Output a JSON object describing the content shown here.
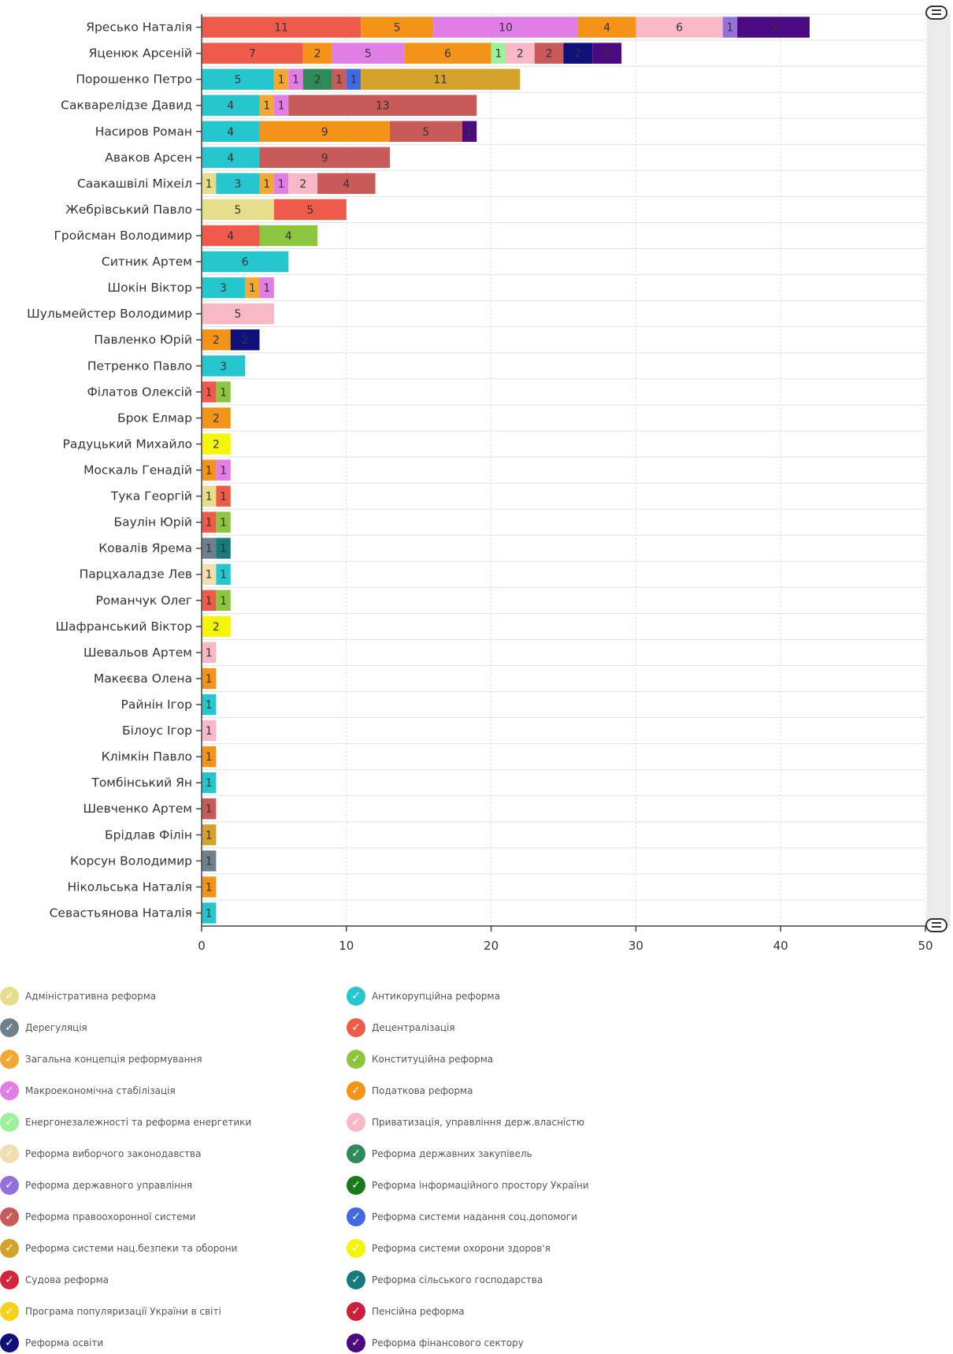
{
  "chart_data": {
    "type": "bar",
    "orientation": "horizontal",
    "stacked": true,
    "xlim": [
      0,
      50
    ],
    "x_ticks": [
      0,
      10,
      20,
      30,
      40,
      50
    ],
    "grid": true,
    "legend_position": "bottom",
    "categories": [
      "Яресько Наталія",
      "Яценюк Арсеній",
      "Порошенко Петро",
      "Сакварелідзе Давид",
      "Насиров Роман",
      "Аваков Арсен",
      "Саакашвілі Міхеіл",
      "Жебрівський Павло",
      "Гройсман Володимир",
      "Ситник Артем",
      "Шокін Віктор",
      "Шульмейстер Володимир",
      "Павленко Юрій",
      "Петренко Павло",
      "Філатов Олексій",
      "Брок Елмар",
      "Радуцький Михайло",
      "Москаль Генадій",
      "Тука Георгій",
      "Баулін Юрій",
      "Ковалів Ярема",
      "Парцхаладзе Лев",
      "Романчук Олег",
      "Шафранський Віктор",
      "Шевальов Артем",
      "Макеєва Олена",
      "Райнін Ігор",
      "Білоус Ігор",
      "Клімкін Павло",
      "Томбінський Ян",
      "Шевченко Артем",
      "Брідлав Філін",
      "Корсун Володимир",
      "Нікольська Наталія",
      "Севастьянова Наталія"
    ],
    "series": [
      {
        "name": "Адміністративна реформа",
        "color": "#e6de8a"
      },
      {
        "name": "Антикорупційна реформа",
        "color": "#26c6cf"
      },
      {
        "name": "Дерегуляція",
        "color": "#6e7f8d"
      },
      {
        "name": "Децентралізація",
        "color": "#ef5b4a"
      },
      {
        "name": "Загальна концепція реформування",
        "color": "#f3a833"
      },
      {
        "name": "Конституційна реформа",
        "color": "#8cc63f"
      },
      {
        "name": "Макроекономічна стабілізація",
        "color": "#e07ee6"
      },
      {
        "name": "Податкова реформа",
        "color": "#f39418"
      },
      {
        "name": "Енергонезалежності та реформа енергетики",
        "color": "#9cf29a"
      },
      {
        "name": "Приватизація, управління держ.власністю",
        "color": "#f9b8c6"
      },
      {
        "name": "Реформа виборчого законодавства",
        "color": "#f2dfb0"
      },
      {
        "name": "Реформа державних закупівель",
        "color": "#2e8b57"
      },
      {
        "name": "Реформа державного управління",
        "color": "#9370db"
      },
      {
        "name": "Реформа інформаційного простору України",
        "color": "#1a7a1a"
      },
      {
        "name": "Реформа правоохоронної системи",
        "color": "#c85a5a"
      },
      {
        "name": "Реформа системи надання соц.допомоги",
        "color": "#4169e1"
      },
      {
        "name": "Реформа системи нац.безпеки та оборони",
        "color": "#d4a12a"
      },
      {
        "name": "Реформа системи охорони здоров'я",
        "color": "#f5f50a"
      },
      {
        "name": "Судова реформа",
        "color": "#d6243a"
      },
      {
        "name": "Реформа сільського господарства",
        "color": "#177b7b"
      },
      {
        "name": "Програма популяризації України в світі",
        "color": "#f7d21a"
      },
      {
        "name": "Пенсійна реформа",
        "color": "#cc1f3d"
      },
      {
        "name": "Реформа освіти",
        "color": "#10107a"
      },
      {
        "name": "Реформа фінансового сектору",
        "color": "#4b0a82"
      }
    ],
    "rows": [
      {
        "name": "Яресько Наталія",
        "segments": [
          {
            "s": 3,
            "v": 11
          },
          {
            "s": 7,
            "v": 5
          },
          {
            "s": 6,
            "v": 10
          },
          {
            "s": 7,
            "v": 4
          },
          {
            "s": 9,
            "v": 6
          },
          {
            "s": 12,
            "v": 1
          },
          {
            "s": 23,
            "v": 5
          }
        ]
      },
      {
        "name": "Яценюк Арсеній",
        "segments": [
          {
            "s": 3,
            "v": 7
          },
          {
            "s": 7,
            "v": 2
          },
          {
            "s": 6,
            "v": 5
          },
          {
            "s": 7,
            "v": 6
          },
          {
            "s": 8,
            "v": 1
          },
          {
            "s": 9,
            "v": 2
          },
          {
            "s": 14,
            "v": 2
          },
          {
            "s": 22,
            "v": 2
          },
          {
            "s": 23,
            "v": 2
          }
        ]
      },
      {
        "name": "Порошенко Петро",
        "segments": [
          {
            "s": 1,
            "v": 5
          },
          {
            "s": 4,
            "v": 1
          },
          {
            "s": 6,
            "v": 1
          },
          {
            "s": 11,
            "v": 2
          },
          {
            "s": 14,
            "v": 1
          },
          {
            "s": 15,
            "v": 1
          },
          {
            "s": 16,
            "v": 11
          }
        ]
      },
      {
        "name": "Сакварелідзе Давид",
        "segments": [
          {
            "s": 1,
            "v": 4
          },
          {
            "s": 4,
            "v": 1
          },
          {
            "s": 6,
            "v": 1
          },
          {
            "s": 14,
            "v": 13
          }
        ]
      },
      {
        "name": "Насиров Роман",
        "segments": [
          {
            "s": 1,
            "v": 4
          },
          {
            "s": 7,
            "v": 9
          },
          {
            "s": 14,
            "v": 5
          },
          {
            "s": 23,
            "v": 1
          }
        ]
      },
      {
        "name": "Аваков Арсен",
        "segments": [
          {
            "s": 1,
            "v": 4
          },
          {
            "s": 14,
            "v": 9
          }
        ]
      },
      {
        "name": "Саакашвілі Міхеіл",
        "segments": [
          {
            "s": 0,
            "v": 1
          },
          {
            "s": 1,
            "v": 3
          },
          {
            "s": 4,
            "v": 1
          },
          {
            "s": 6,
            "v": 1
          },
          {
            "s": 9,
            "v": 2
          },
          {
            "s": 14,
            "v": 4
          }
        ]
      },
      {
        "name": "Жебрівський Павло",
        "segments": [
          {
            "s": 0,
            "v": 5
          },
          {
            "s": 3,
            "v": 5
          }
        ]
      },
      {
        "name": "Гройсман Володимир",
        "segments": [
          {
            "s": 3,
            "v": 4
          },
          {
            "s": 5,
            "v": 4
          }
        ]
      },
      {
        "name": "Ситник Артем",
        "segments": [
          {
            "s": 1,
            "v": 6
          }
        ]
      },
      {
        "name": "Шокін Віктор",
        "segments": [
          {
            "s": 1,
            "v": 3
          },
          {
            "s": 4,
            "v": 1
          },
          {
            "s": 6,
            "v": 1
          }
        ]
      },
      {
        "name": "Шульмейстер Володимир",
        "segments": [
          {
            "s": 9,
            "v": 5
          }
        ]
      },
      {
        "name": "Павленко Юрій",
        "segments": [
          {
            "s": 7,
            "v": 2
          },
          {
            "s": 22,
            "v": 2
          }
        ]
      },
      {
        "name": "Петренко Павло",
        "segments": [
          {
            "s": 1,
            "v": 3
          }
        ]
      },
      {
        "name": "Філатов Олексій",
        "segments": [
          {
            "s": 3,
            "v": 1
          },
          {
            "s": 5,
            "v": 1
          }
        ]
      },
      {
        "name": "Брок Елмар",
        "segments": [
          {
            "s": 7,
            "v": 2
          }
        ]
      },
      {
        "name": "Радуцький Михайло",
        "segments": [
          {
            "s": 17,
            "v": 2
          }
        ]
      },
      {
        "name": "Москаль Генадій",
        "segments": [
          {
            "s": 7,
            "v": 1
          },
          {
            "s": 6,
            "v": 1
          }
        ]
      },
      {
        "name": "Тука Георгій",
        "segments": [
          {
            "s": 0,
            "v": 1
          },
          {
            "s": 3,
            "v": 1
          }
        ]
      },
      {
        "name": "Баулін Юрій",
        "segments": [
          {
            "s": 3,
            "v": 1
          },
          {
            "s": 5,
            "v": 1
          }
        ]
      },
      {
        "name": "Ковалів Ярема",
        "segments": [
          {
            "s": 2,
            "v": 1
          },
          {
            "s": 19,
            "v": 1
          }
        ]
      },
      {
        "name": "Парцхаладзе Лев",
        "segments": [
          {
            "s": 10,
            "v": 1
          },
          {
            "s": 1,
            "v": 1
          }
        ]
      },
      {
        "name": "Романчук Олег",
        "segments": [
          {
            "s": 3,
            "v": 1
          },
          {
            "s": 5,
            "v": 1
          }
        ]
      },
      {
        "name": "Шафранський Віктор",
        "segments": [
          {
            "s": 17,
            "v": 2
          }
        ]
      },
      {
        "name": "Шевальов Артем",
        "segments": [
          {
            "s": 9,
            "v": 1
          }
        ]
      },
      {
        "name": "Макеєва Олена",
        "segments": [
          {
            "s": 7,
            "v": 1
          }
        ]
      },
      {
        "name": "Райнін Ігор",
        "segments": [
          {
            "s": 1,
            "v": 1
          }
        ]
      },
      {
        "name": "Білоус Ігор",
        "segments": [
          {
            "s": 9,
            "v": 1
          }
        ]
      },
      {
        "name": "Клімкін Павло",
        "segments": [
          {
            "s": 7,
            "v": 1
          }
        ]
      },
      {
        "name": "Томбінський Ян",
        "segments": [
          {
            "s": 1,
            "v": 1
          }
        ]
      },
      {
        "name": "Шевченко Артем",
        "segments": [
          {
            "s": 14,
            "v": 1
          }
        ]
      },
      {
        "name": "Брідлав Філін",
        "segments": [
          {
            "s": 16,
            "v": 1
          }
        ]
      },
      {
        "name": "Корсун Володимир",
        "segments": [
          {
            "s": 2,
            "v": 1
          }
        ]
      },
      {
        "name": "Нікольська Наталія",
        "segments": [
          {
            "s": 7,
            "v": 1
          }
        ]
      },
      {
        "name": "Севастьянова Наталія",
        "segments": [
          {
            "s": 1,
            "v": 1
          }
        ]
      }
    ]
  },
  "legend": {
    "check_icon": "check-icon",
    "columns": 2
  },
  "ui": {
    "scrollbar_handle_icon": "menu-handle-icon"
  }
}
